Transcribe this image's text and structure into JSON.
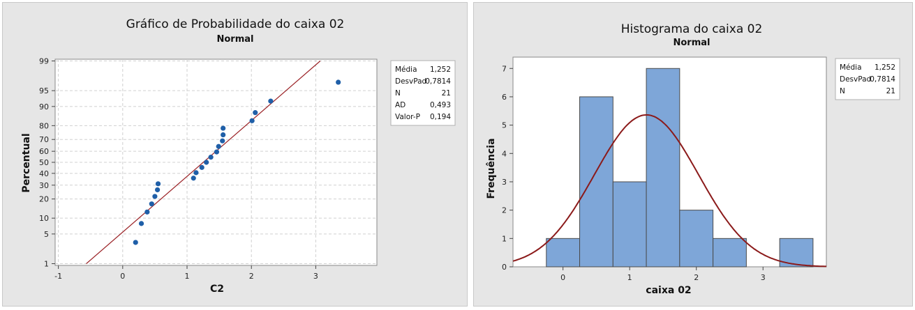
{
  "chart_data": [
    {
      "type": "scatter",
      "title": "Gráfico de Probabilidade do caixa 02",
      "subtitle": "Normal",
      "xlabel": "C2",
      "ylabel": "Percentual",
      "xlim": [
        -1.05,
        3.95
      ],
      "x_ticks": [
        -1,
        0,
        1,
        2,
        3
      ],
      "y_ticks": [
        1,
        5,
        10,
        20,
        30,
        40,
        50,
        60,
        70,
        80,
        90,
        95,
        99
      ],
      "y_scale": "normal-probability",
      "grid": true,
      "legend_position": "right",
      "stats": [
        {
          "label": "Média",
          "value": "1,252"
        },
        {
          "label": "DesvPad",
          "value": "0,7814"
        },
        {
          "label": "N",
          "value": "21"
        },
        {
          "label": "AD",
          "value": "0,493"
        },
        {
          "label": "Valor-P",
          "value": "0,194"
        }
      ],
      "fit_line": {
        "mean": 1.252,
        "sd": 0.7814
      },
      "points": [
        {
          "x": 0.2,
          "y": 3.3
        },
        {
          "x": 0.29,
          "y": 8.0
        },
        {
          "x": 0.38,
          "y": 12.7
        },
        {
          "x": 0.45,
          "y": 17.0
        },
        {
          "x": 0.5,
          "y": 21.7
        },
        {
          "x": 0.54,
          "y": 26.4
        },
        {
          "x": 0.55,
          "y": 31.1
        },
        {
          "x": 1.1,
          "y": 35.8
        },
        {
          "x": 1.14,
          "y": 40.6
        },
        {
          "x": 1.23,
          "y": 45.3
        },
        {
          "x": 1.3,
          "y": 50.0
        },
        {
          "x": 1.37,
          "y": 54.7
        },
        {
          "x": 1.46,
          "y": 59.4
        },
        {
          "x": 1.49,
          "y": 64.2
        },
        {
          "x": 1.55,
          "y": 68.9
        },
        {
          "x": 1.56,
          "y": 73.6
        },
        {
          "x": 1.56,
          "y": 78.3
        },
        {
          "x": 2.01,
          "y": 83.0
        },
        {
          "x": 2.06,
          "y": 87.3
        },
        {
          "x": 2.3,
          "y": 92.0
        },
        {
          "x": 3.35,
          "y": 96.7
        }
      ],
      "colors": {
        "points": "#1f5fa8",
        "line": "#9b2226"
      }
    },
    {
      "type": "bar",
      "title": "Histograma do caixa 02",
      "subtitle": "Normal",
      "xlabel": "caixa 02",
      "ylabel": "Frequência",
      "xlim": [
        -0.75,
        3.95
      ],
      "ylim": [
        0,
        7.4
      ],
      "x_ticks": [
        0,
        1,
        2,
        3
      ],
      "y_ticks": [
        0,
        1,
        2,
        3,
        4,
        5,
        6,
        7
      ],
      "legend_position": "right",
      "stats": [
        {
          "label": "Média",
          "value": "1,252"
        },
        {
          "label": "DesvPad",
          "value": "0,7814"
        },
        {
          "label": "N",
          "value": "21"
        }
      ],
      "bins": [
        {
          "x0": -0.25,
          "x1": 0.25,
          "count": 1
        },
        {
          "x0": 0.25,
          "x1": 0.75,
          "count": 6
        },
        {
          "x0": 0.75,
          "x1": 1.25,
          "count": 3
        },
        {
          "x0": 1.25,
          "x1": 1.75,
          "count": 7
        },
        {
          "x0": 1.75,
          "x1": 2.25,
          "count": 2
        },
        {
          "x0": 2.25,
          "x1": 2.75,
          "count": 1
        },
        {
          "x0": 2.75,
          "x1": 3.25,
          "count": 0
        },
        {
          "x0": 3.25,
          "x1": 3.75,
          "count": 1
        }
      ],
      "normal_curve": {
        "mean": 1.252,
        "sd": 0.7814,
        "n": 21,
        "bin_width": 0.5
      },
      "colors": {
        "bars": "#7ea6d8",
        "bar_edge": "#4a4a4a",
        "curve": "#8b1a1a"
      }
    }
  ]
}
